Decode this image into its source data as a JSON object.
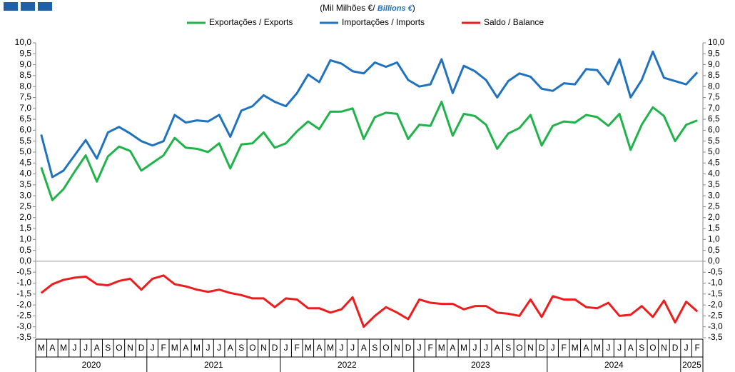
{
  "chart_data": {
    "type": "line",
    "subtitle": [
      "(Mil Milhões  €/",
      "Billions €",
      ")"
    ],
    "categories": [
      "M",
      "A",
      "M",
      "J",
      "J",
      "A",
      "S",
      "O",
      "N",
      "D",
      "J",
      "F",
      "M",
      "A",
      "M",
      "J",
      "J",
      "A",
      "S",
      "O",
      "N",
      "D",
      "J",
      "F",
      "M",
      "A",
      "M",
      "J",
      "J",
      "A",
      "S",
      "O",
      "N",
      "D",
      "J",
      "F",
      "M",
      "A",
      "M",
      "J",
      "J",
      "A",
      "S",
      "O",
      "N",
      "D",
      "J",
      "F",
      "M",
      "A",
      "M",
      "J",
      "J",
      "A",
      "S",
      "O",
      "N",
      "D",
      "J",
      "F"
    ],
    "years": [
      "2020",
      "2021",
      "2022",
      "2023",
      "2024",
      "2025"
    ],
    "series": [
      {
        "name": "Exportações / Exports",
        "color": "#1fb34a",
        "values": [
          4.3,
          2.8,
          3.3,
          4.1,
          4.85,
          3.65,
          4.8,
          5.25,
          5.05,
          4.15,
          4.5,
          4.85,
          5.65,
          5.2,
          5.15,
          5.0,
          5.4,
          4.25,
          5.35,
          5.4,
          5.9,
          5.2,
          5.4,
          5.95,
          6.4,
          6.05,
          6.85,
          6.85,
          7.0,
          5.6,
          6.6,
          6.8,
          6.75,
          5.6,
          6.25,
          6.2,
          7.3,
          5.75,
          6.75,
          6.65,
          6.25,
          5.15,
          5.85,
          6.1,
          6.7,
          5.3,
          6.2,
          6.4,
          6.35,
          6.7,
          6.6,
          6.2,
          6.75,
          5.1,
          6.25,
          7.05,
          6.65,
          5.5,
          6.25,
          6.45
        ]
      },
      {
        "name": "Importações / Imports",
        "color": "#1f72c0",
        "values": [
          5.8,
          3.85,
          4.15,
          4.85,
          5.55,
          4.7,
          5.9,
          6.15,
          5.85,
          5.5,
          5.3,
          5.5,
          6.7,
          6.35,
          6.45,
          6.4,
          6.7,
          5.7,
          6.9,
          7.1,
          7.6,
          7.3,
          7.1,
          7.7,
          8.55,
          8.2,
          9.2,
          9.05,
          8.7,
          8.6,
          9.1,
          8.9,
          9.1,
          8.3,
          8.0,
          8.1,
          9.25,
          7.7,
          8.95,
          8.7,
          8.3,
          7.5,
          8.25,
          8.6,
          8.45,
          7.9,
          7.8,
          8.15,
          8.1,
          8.8,
          8.75,
          8.1,
          9.25,
          7.5,
          8.3,
          9.6,
          8.4,
          8.25,
          8.1,
          8.65
        ]
      },
      {
        "name": "Saldo / Balance",
        "color": "#ee1c1c",
        "values": [
          -1.45,
          -1.05,
          -0.85,
          -0.75,
          -0.7,
          -1.05,
          -1.1,
          -0.9,
          -0.8,
          -1.3,
          -0.8,
          -0.65,
          -1.05,
          -1.15,
          -1.3,
          -1.4,
          -1.3,
          -1.45,
          -1.55,
          -1.7,
          -1.7,
          -2.1,
          -1.7,
          -1.75,
          -2.15,
          -2.15,
          -2.35,
          -2.2,
          -1.65,
          -3.0,
          -2.5,
          -2.1,
          -2.35,
          -2.65,
          -1.75,
          -1.9,
          -1.95,
          -1.95,
          -2.2,
          -2.05,
          -2.05,
          -2.35,
          -2.4,
          -2.5,
          -1.75,
          -2.55,
          -1.6,
          -1.75,
          -1.75,
          -2.1,
          -2.15,
          -1.9,
          -2.5,
          -2.45,
          -2.05,
          -2.55,
          -1.8,
          -2.8,
          -1.85,
          -2.3
        ]
      }
    ],
    "ylim": [
      -3.5,
      10
    ],
    "yticks": [
      {
        "value": 10,
        "label": "10,0"
      },
      {
        "value": 9.5,
        "label": "9,5"
      },
      {
        "value": 9,
        "label": "9,0"
      },
      {
        "value": 8.5,
        "label": "8,5"
      },
      {
        "value": 8,
        "label": "8,0"
      },
      {
        "value": 7.5,
        "label": "7,5"
      },
      {
        "value": 7,
        "label": "7,0"
      },
      {
        "value": 6.5,
        "label": "6,5"
      },
      {
        "value": 6,
        "label": "6,0"
      },
      {
        "value": 5.5,
        "label": "5,5"
      },
      {
        "value": 5,
        "label": "5,0"
      },
      {
        "value": 4.5,
        "label": "4,5"
      },
      {
        "value": 4,
        "label": "4,0"
      },
      {
        "value": 3.5,
        "label": "3,5"
      },
      {
        "value": 3,
        "label": "3,0"
      },
      {
        "value": 2.5,
        "label": "2,5"
      },
      {
        "value": 2,
        "label": "2,0"
      },
      {
        "value": 1.5,
        "label": "1,5"
      },
      {
        "value": 1,
        "label": "1,0"
      },
      {
        "value": 0.5,
        "label": "0,5"
      },
      {
        "value": 0,
        "label": "0,0"
      },
      {
        "value": -0.5,
        "label": "-0,5"
      },
      {
        "value": -1,
        "label": "-1,0"
      },
      {
        "value": -1.5,
        "label": "-1,5"
      },
      {
        "value": -2,
        "label": "-2,0"
      },
      {
        "value": -2.5,
        "label": "-2,5"
      },
      {
        "value": -3,
        "label": "-3,0"
      },
      {
        "value": -3.5,
        "label": "-3,5"
      }
    ]
  }
}
